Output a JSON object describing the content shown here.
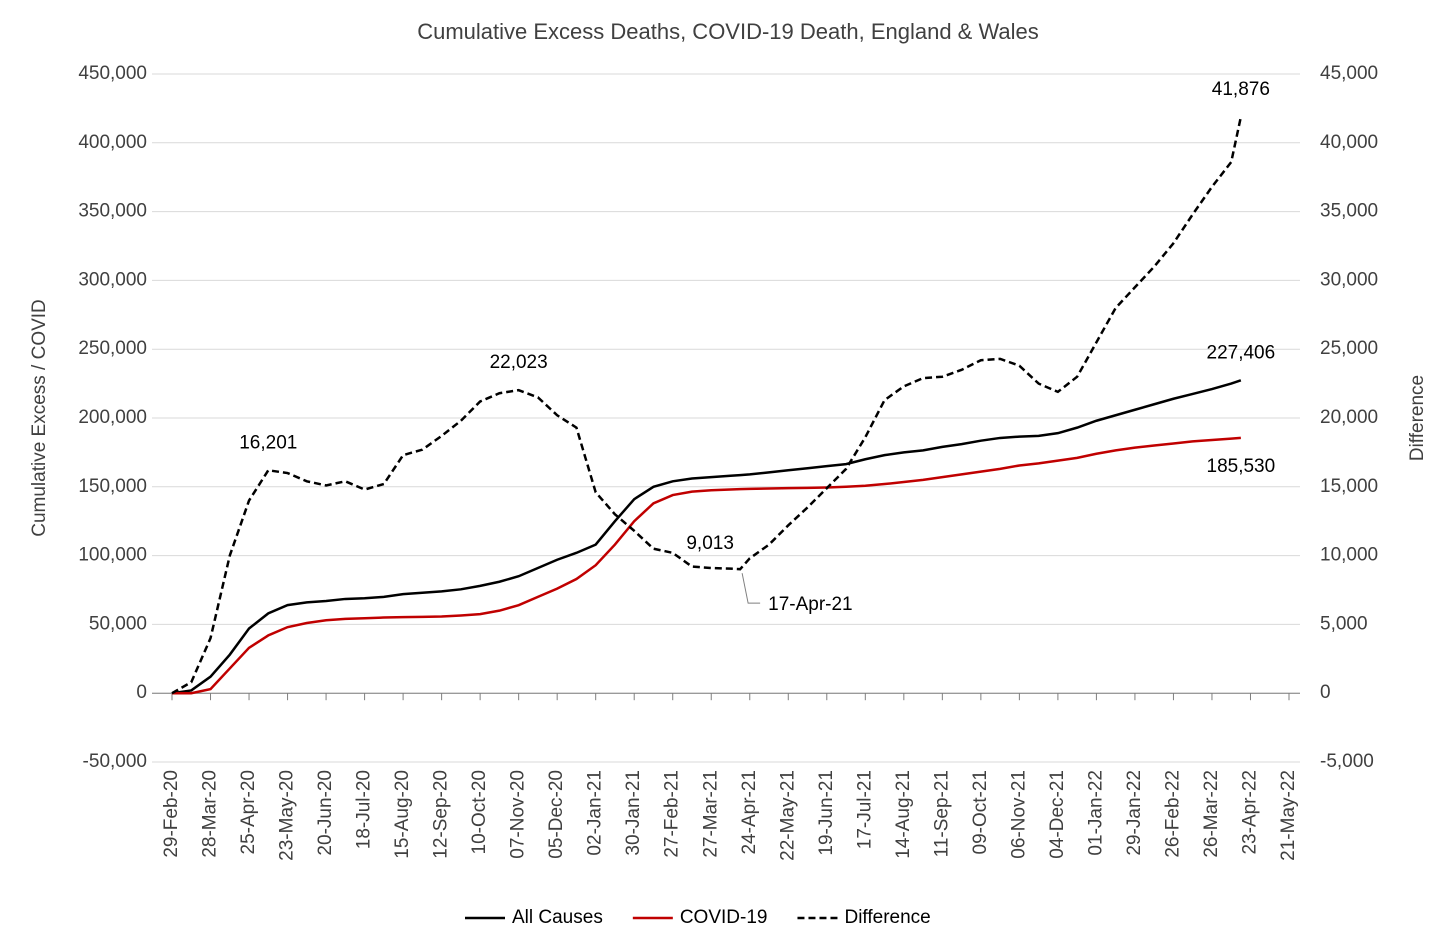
{
  "chart_data": {
    "type": "line",
    "title": "Cumulative Excess Deaths, COVID-19 Death, England & Wales",
    "ylabel": "Cumulative Excess / COVID",
    "y2label": "Difference",
    "x": [
      "29-Feb-20",
      "14-Mar-20",
      "28-Mar-20",
      "11-Apr-20",
      "25-Apr-20",
      "09-May-20",
      "23-May-20",
      "06-Jun-20",
      "20-Jun-20",
      "04-Jul-20",
      "18-Jul-20",
      "01-Aug-20",
      "15-Aug-20",
      "29-Aug-20",
      "12-Sep-20",
      "26-Sep-20",
      "10-Oct-20",
      "24-Oct-20",
      "07-Nov-20",
      "21-Nov-20",
      "05-Dec-20",
      "19-Dec-20",
      "02-Jan-21",
      "16-Jan-21",
      "30-Jan-21",
      "13-Feb-21",
      "27-Feb-21",
      "13-Mar-21",
      "27-Mar-21",
      "10-Apr-21",
      "17-Apr-21",
      "24-Apr-21",
      "08-May-21",
      "22-May-21",
      "05-Jun-21",
      "19-Jun-21",
      "03-Jul-21",
      "17-Jul-21",
      "31-Jul-21",
      "14-Aug-21",
      "28-Aug-21",
      "11-Sep-21",
      "25-Sep-21",
      "09-Oct-21",
      "23-Oct-21",
      "06-Nov-21",
      "20-Nov-21",
      "04-Dec-21",
      "18-Dec-21",
      "01-Jan-22",
      "15-Jan-22",
      "29-Jan-22",
      "12-Feb-22",
      "26-Feb-22",
      "12-Mar-22",
      "26-Mar-22",
      "09-Apr-22",
      "16-Apr-22"
    ],
    "xlim": [
      "29-Feb-20",
      "21-May-22"
    ],
    "xticks": [
      "29-Feb-20",
      "28-Mar-20",
      "25-Apr-20",
      "23-May-20",
      "20-Jun-20",
      "18-Jul-20",
      "15-Aug-20",
      "12-Sep-20",
      "10-Oct-20",
      "07-Nov-20",
      "05-Dec-20",
      "02-Jan-21",
      "30-Jan-21",
      "27-Feb-21",
      "27-Mar-21",
      "24-Apr-21",
      "22-May-21",
      "19-Jun-21",
      "17-Jul-21",
      "14-Aug-21",
      "11-Sep-21",
      "09-Oct-21",
      "06-Nov-21",
      "04-Dec-21",
      "01-Jan-22",
      "29-Jan-22",
      "26-Feb-22",
      "26-Mar-22",
      "23-Apr-22",
      "21-May-22"
    ],
    "ylim": [
      -50000,
      450000
    ],
    "yticks": [
      {
        "value": -50000,
        "label": "-50,000"
      },
      0,
      {
        "value": 50000,
        "label": "50,000"
      },
      {
        "value": 100000,
        "label": "100,000"
      },
      {
        "value": 150000,
        "label": "150,000"
      },
      {
        "value": 200000,
        "label": "200,000"
      },
      {
        "value": 250000,
        "label": "250,000"
      },
      {
        "value": 300000,
        "label": "300,000"
      },
      {
        "value": 350000,
        "label": "350,000"
      },
      {
        "value": 400000,
        "label": "400,000"
      },
      {
        "value": 450000,
        "label": "450,000"
      }
    ],
    "y2lim": [
      -5000,
      45000
    ],
    "y2ticks": [
      {
        "value": -5000,
        "label": "-5,000"
      },
      0,
      {
        "value": 5000,
        "label": "5,000"
      },
      {
        "value": 10000,
        "label": "10,000"
      },
      {
        "value": 15000,
        "label": "15,000"
      },
      {
        "value": 20000,
        "label": "20,000"
      },
      {
        "value": 25000,
        "label": "25,000"
      },
      {
        "value": 30000,
        "label": "30,000"
      },
      {
        "value": 35000,
        "label": "35,000"
      },
      {
        "value": 40000,
        "label": "40,000"
      },
      {
        "value": 45000,
        "label": "45,000"
      }
    ],
    "grid": true,
    "legend": "bottom",
    "series": [
      {
        "name": "All Causes",
        "color": "#000000",
        "dashed": false,
        "values": [
          0,
          2000,
          12000,
          28000,
          47000,
          58000,
          64000,
          66000,
          67000,
          68500,
          69000,
          70000,
          72000,
          73000,
          74000,
          75500,
          78000,
          81000,
          85000,
          91000,
          97000,
          102000,
          108000,
          125000,
          141000,
          150000,
          154000,
          156000,
          157000,
          158000,
          158500,
          159000,
          160500,
          162000,
          163500,
          165000,
          166500,
          170000,
          173000,
          175000,
          176500,
          179000,
          181000,
          183500,
          185500,
          186500,
          187000,
          189000,
          193000,
          198000,
          202000,
          206000,
          210000,
          214000,
          217500,
          221000,
          225000,
          227406
        ],
        "value_labels": [
          null,
          null,
          null,
          null,
          null,
          null,
          null,
          null,
          null,
          null,
          null,
          null,
          null,
          null,
          null,
          null,
          null,
          null,
          null,
          null,
          null,
          null,
          null,
          null,
          null,
          null,
          null,
          null,
          null,
          null,
          null,
          null,
          null,
          null,
          null,
          null,
          null,
          null,
          null,
          null,
          null,
          null,
          null,
          null,
          null,
          null,
          null,
          null,
          null,
          null,
          null,
          null,
          null,
          null,
          null,
          null,
          null,
          "227,406"
        ]
      },
      {
        "name": "COVID-19",
        "color": "#c00000",
        "dashed": false,
        "values": [
          0,
          0,
          3000,
          18000,
          33000,
          42000,
          48000,
          51000,
          53000,
          54000,
          54500,
          55000,
          55300,
          55500,
          55700,
          56500,
          57500,
          60000,
          64000,
          70000,
          76000,
          83000,
          93000,
          108000,
          125000,
          138000,
          144000,
          146500,
          147500,
          148000,
          148300,
          148500,
          148800,
          149000,
          149200,
          149500,
          150000,
          150800,
          152000,
          153500,
          155000,
          157000,
          159000,
          161000,
          163000,
          165500,
          167000,
          169000,
          171000,
          174000,
          176500,
          178500,
          180000,
          181500,
          183000,
          184000,
          185000,
          185530
        ],
        "value_labels": [
          null,
          null,
          null,
          null,
          null,
          null,
          null,
          null,
          null,
          null,
          null,
          null,
          null,
          null,
          null,
          null,
          null,
          null,
          null,
          null,
          null,
          null,
          null,
          null,
          null,
          null,
          null,
          null,
          null,
          null,
          null,
          null,
          null,
          null,
          null,
          null,
          null,
          null,
          null,
          null,
          null,
          null,
          null,
          null,
          null,
          null,
          null,
          null,
          null,
          null,
          null,
          null,
          null,
          null,
          null,
          null,
          null,
          "185,530"
        ]
      },
      {
        "name": "Difference",
        "color": "#000000",
        "dashed": true,
        "axis": "y2",
        "values": [
          0,
          800,
          4000,
          10000,
          14000,
          16201,
          16000,
          15400,
          15100,
          15400,
          14800,
          15200,
          17300,
          17700,
          18700,
          19800,
          21200,
          21800,
          22023,
          21500,
          20200,
          19300,
          14600,
          13000,
          11800,
          10500,
          10200,
          9200,
          9100,
          9050,
          9013,
          9800,
          10800,
          12200,
          13500,
          14900,
          16300,
          18600,
          21300,
          22300,
          22900,
          23000,
          23500,
          24200,
          24300,
          23800,
          22500,
          21900,
          23000,
          25500,
          28000,
          29500,
          31000,
          32700,
          34800,
          36800,
          38600,
          41876
        ],
        "value_labels": [
          null,
          null,
          null,
          null,
          null,
          "16,201",
          null,
          null,
          null,
          null,
          null,
          null,
          null,
          null,
          null,
          null,
          null,
          null,
          "22,023",
          null,
          null,
          null,
          null,
          null,
          null,
          null,
          null,
          null,
          null,
          null,
          "9,013",
          null,
          null,
          null,
          null,
          null,
          null,
          null,
          null,
          null,
          null,
          null,
          null,
          null,
          null,
          null,
          null,
          null,
          null,
          null,
          null,
          null,
          null,
          null,
          null,
          null,
          null,
          "41,876"
        ]
      }
    ]
  }
}
